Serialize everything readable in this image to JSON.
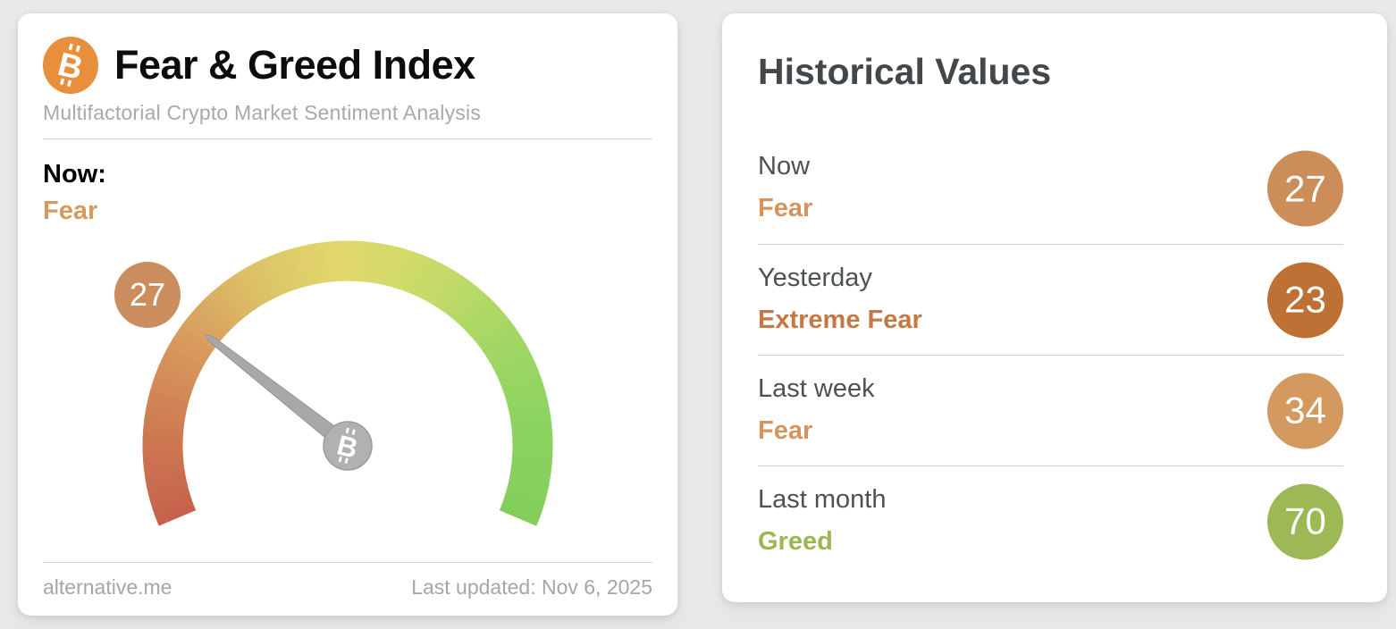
{
  "page": {
    "background": "#e9e9eb"
  },
  "left_card": {
    "title": "Fear & Greed Index",
    "subtitle": "Multifactorial Crypto Market Sentiment Analysis",
    "now_label": "Now:",
    "now_classification": "Fear",
    "now_color": "#d7995f",
    "footer_left": "alternative.me",
    "footer_right": "Last updated: Nov 6, 2025",
    "logo_color": "#e78f3c",
    "gauge": {
      "value": 27,
      "min": 0,
      "max": 100,
      "start_angle": 203,
      "end_angle": -23,
      "band_colors": [
        "#c5614b",
        "#ce7b52",
        "#d89a5e",
        "#ddc367",
        "#e2d96c",
        "#c6da68",
        "#a2d765",
        "#8bd360",
        "#83ce5b"
      ],
      "needle_color": "#a8a8a8",
      "needle_edge_color": "#969696",
      "hub_color": "#b1b1b1",
      "hub_edge_color": "#9c9c9c",
      "badge_color": "#cb8c5e"
    }
  },
  "right_card": {
    "title": "Historical Values",
    "rows": [
      {
        "period": "Now",
        "classification": "Fear",
        "value": 27,
        "text_color": "#d6935c",
        "badge_color": "#cd8d59"
      },
      {
        "period": "Yesterday",
        "classification": "Extreme Fear",
        "value": 23,
        "text_color": "#c57744",
        "badge_color": "#bd7134"
      },
      {
        "period": "Last week",
        "classification": "Fear",
        "value": 34,
        "text_color": "#d6935c",
        "badge_color": "#d3995f"
      },
      {
        "period": "Last month",
        "classification": "Greed",
        "value": 70,
        "text_color": "#9bb754",
        "badge_color": "#9cb956"
      }
    ]
  },
  "chart_data": {
    "type": "gauge",
    "title": "Fear & Greed Index",
    "value": 27,
    "min": 0,
    "max": 100,
    "classification": "Fear",
    "scale_note": "0 = Extreme Fear (red) to 100 = Extreme Greed (green), 226-degree arc",
    "historical": [
      {
        "label": "Now",
        "value": 27,
        "classification": "Fear"
      },
      {
        "label": "Yesterday",
        "value": 23,
        "classification": "Extreme Fear"
      },
      {
        "label": "Last week",
        "value": 34,
        "classification": "Fear"
      },
      {
        "label": "Last month",
        "value": 70,
        "classification": "Greed"
      }
    ],
    "last_updated": "Nov 6, 2025",
    "source": "alternative.me"
  }
}
